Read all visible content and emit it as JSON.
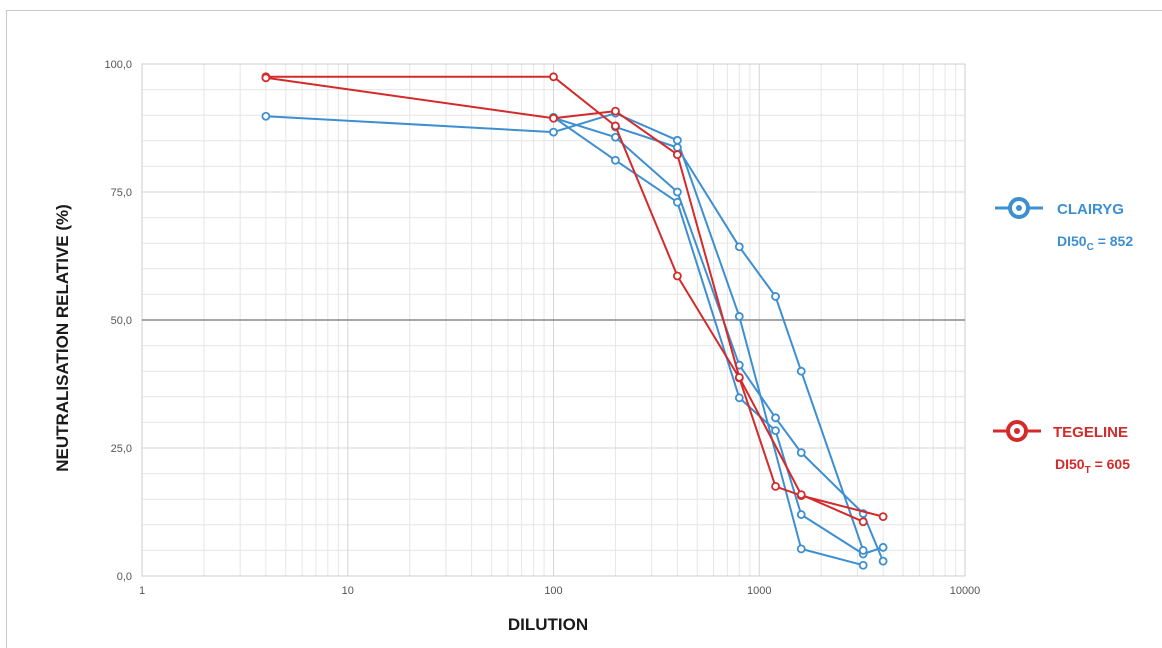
{
  "chart_data": {
    "type": "line",
    "xlabel": "DILUTION",
    "ylabel": "NEUTRALISATION RELATIVE (%)",
    "x_scale": "log",
    "xlim": [
      1,
      10000
    ],
    "ylim": [
      0,
      100
    ],
    "x_ticks": [
      "1",
      "10",
      "100",
      "1000",
      "10000"
    ],
    "y_ticks": [
      "0,0",
      "25,0",
      "50,0",
      "75,0",
      "100,0"
    ],
    "reference_line_y": 50,
    "grid": true,
    "legend_position": "right",
    "series": [
      {
        "name": "CLAIRYG",
        "group": "clairyg",
        "color": "#3d8fd1",
        "points": [
          [
            4,
            89.8
          ],
          [
            100,
            86.7
          ],
          [
            200,
            90.4
          ],
          [
            400,
            85.1
          ],
          [
            800,
            50.7
          ],
          [
            1600,
            5.3
          ],
          [
            3200,
            2.1
          ]
        ]
      },
      {
        "name": "",
        "group": "clairyg",
        "color": "#3d8fd1",
        "points": [
          [
            100,
            89.5
          ],
          [
            200,
            85.7
          ],
          [
            400,
            75.0
          ],
          [
            800,
            41.2
          ],
          [
            1200,
            30.9
          ],
          [
            1600,
            24.1
          ],
          [
            3200,
            12.2
          ],
          [
            4000,
            2.9
          ]
        ]
      },
      {
        "name": "",
        "group": "clairyg",
        "color": "#3d8fd1",
        "points": [
          [
            100,
            89.6
          ],
          [
            200,
            81.2
          ],
          [
            400,
            73.0
          ],
          [
            800,
            34.8
          ],
          [
            1200,
            28.4
          ],
          [
            1600,
            12.0
          ],
          [
            3200,
            4.3
          ],
          [
            4000,
            5.6
          ]
        ]
      },
      {
        "name": "",
        "group": "clairyg",
        "color": "#3d8fd1",
        "points": [
          [
            200,
            87.7
          ],
          [
            400,
            83.7
          ],
          [
            800,
            64.3
          ],
          [
            1200,
            54.6
          ],
          [
            1600,
            40.0
          ],
          [
            3200,
            5.0
          ]
        ]
      },
      {
        "name": "TEGELINE",
        "group": "tegeline",
        "color": "#d42a2a",
        "points": [
          [
            4,
            97.5
          ],
          [
            100,
            97.5
          ],
          [
            200,
            87.9
          ],
          [
            400,
            58.6
          ],
          [
            800,
            38.7
          ],
          [
            1200,
            17.5
          ],
          [
            1600,
            15.7
          ],
          [
            4000,
            11.6
          ]
        ]
      },
      {
        "name": "",
        "group": "tegeline",
        "color": "#d42a2a",
        "points": [
          [
            4,
            97.3
          ],
          [
            100,
            89.4
          ],
          [
            200,
            90.8
          ],
          [
            400,
            82.3
          ],
          [
            800,
            38.8
          ],
          [
            1600,
            15.9
          ],
          [
            3200,
            10.6
          ]
        ]
      }
    ],
    "legend": [
      {
        "label": "CLAIRYG",
        "color": "#3d8fd1",
        "di_prefix": "DI50",
        "di_sub": "C",
        "di_suffix": " = 852"
      },
      {
        "label": "TEGELINE",
        "color": "#d42a2a",
        "di_prefix": "DI50",
        "di_sub": "T",
        "di_suffix": " = 605"
      }
    ]
  }
}
